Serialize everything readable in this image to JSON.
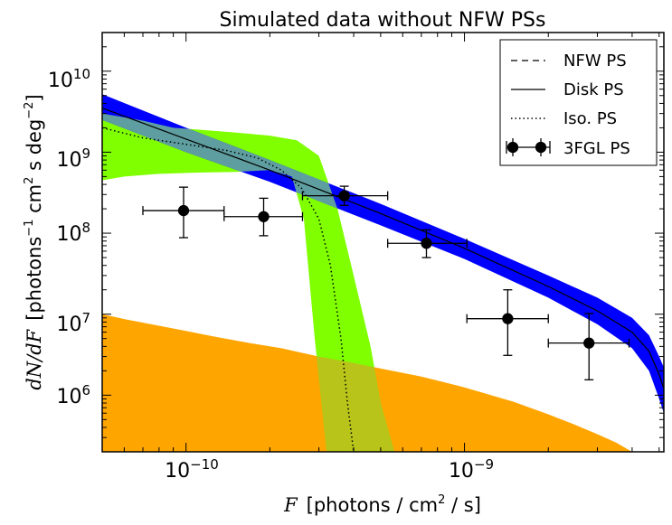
{
  "chart_data": {
    "type": "line",
    "title": "Simulated data without NFW PSs",
    "xlabel": {
      "math": "F",
      "text": "[photons / cm",
      "sup": "2",
      "tail": " / s]"
    },
    "ylabel": {
      "math": "dN/dF",
      "text": "[photons",
      "sup1": "−1",
      "mid": " cm",
      "sup2": "2",
      "mid2": " s deg",
      "sup3": "−2",
      "tail": "]"
    },
    "xscale": "log",
    "yscale": "log",
    "xlim": [
      5e-11,
      5.2e-09
    ],
    "ylim": [
      200000.0,
      30000000000.0
    ],
    "x_ticks": [
      {
        "value": 1e-10,
        "base": "10",
        "exp": "−10"
      },
      {
        "value": 1e-09,
        "base": "10",
        "exp": "−9"
      }
    ],
    "y_ticks": [
      {
        "value": 1000000.0,
        "base": "10",
        "exp": "6"
      },
      {
        "value": 10000000.0,
        "base": "10",
        "exp": "7"
      },
      {
        "value": 100000000.0,
        "base": "10",
        "exp": "8"
      },
      {
        "value": 1000000000.0,
        "base": "10",
        "exp": "9"
      },
      {
        "value": 10000000000.0,
        "base": "10",
        "exp": "10"
      }
    ],
    "legend": {
      "position": "top-right",
      "entries": [
        {
          "label": "NFW PS",
          "style": "dashed"
        },
        {
          "label": "Disk PS",
          "style": "solid"
        },
        {
          "label": "Iso. PS",
          "style": "dotted"
        },
        {
          "label": "3FGL PS",
          "style": "errorbar"
        }
      ]
    },
    "colors": {
      "disk_band": "#0000ff",
      "iso_band": "#7fff00",
      "overlap_band": "#5f9ea0",
      "nfw_fill": "#ffa500",
      "nfw_iso_overlap": "#b8c419",
      "line": "#000000"
    },
    "series": [
      {
        "name": "Disk PS",
        "style": "solid",
        "x": [
          5e-11,
          1e-10,
          2e-10,
          5e-10,
          1e-09,
          2e-09,
          3e-09,
          4e-09,
          4.6e-09,
          5e-09,
          5.2e-09
        ],
        "y": [
          3500000000.0,
          1450000000.0,
          600000000.0,
          175000000.0,
          65000000.0,
          22000000.0,
          11000000.0,
          6000000.0,
          3500000.0,
          1800000.0,
          1200000.0
        ]
      },
      {
        "name": "Disk PS band",
        "style": "band",
        "x": [
          5e-11,
          1e-10,
          2e-10,
          5e-10,
          1e-09,
          2e-09,
          3e-09,
          4e-09,
          4.6e-09,
          5e-09,
          5.2e-09
        ],
        "upper": [
          5200000000.0,
          2000000000.0,
          800000000.0,
          230000000.0,
          85000000.0,
          30000000.0,
          16000000.0,
          9000000.0,
          5500000.0,
          3000000.0,
          2200000.0
        ],
        "lower": [
          2500000000.0,
          1000000000.0,
          430000000.0,
          125000000.0,
          48000000.0,
          16000000.0,
          7500000.0,
          3800000.0,
          2000000.0,
          900000.0,
          600000.0
        ]
      },
      {
        "name": "Iso. PS",
        "style": "dotted",
        "x": [
          5e-11,
          7e-11,
          1e-10,
          1.4e-10,
          1.8e-10,
          2.2e-10,
          2.6e-10,
          3e-10,
          3.3e-10,
          3.6e-10,
          3.8e-10,
          4e-10
        ],
        "y": [
          2000000000.0,
          1500000000.0,
          1250000000.0,
          1050000000.0,
          850000000.0,
          600000000.0,
          360000000.0,
          150000000.0,
          40000000.0,
          5000000.0,
          800000.0,
          200000.0
        ]
      },
      {
        "name": "Iso. PS band",
        "style": "band",
        "x_upper": [
          5e-11,
          7e-11,
          9e-11,
          1.1e-10,
          1.5e-10,
          2e-10,
          2.5e-10,
          3e-10,
          3.5e-10,
          4e-10,
          4.6e-10,
          5e-10,
          5.6e-10
        ],
        "upper": [
          3000000000.0,
          2450000000.0,
          2000000000.0,
          1900000000.0,
          1750000000.0,
          1600000000.0,
          1400000000.0,
          900000000.0,
          200000000.0,
          30000000.0,
          4000000.0,
          800000.0,
          200000.0
        ],
        "x_lower": [
          5e-11,
          6e-11,
          8e-11,
          1.1e-10,
          1.5e-10,
          2e-10,
          2.4e-10,
          2.65e-10,
          2.9e-10,
          3.2e-10
        ],
        "lower": [
          450000000.0,
          500000000.0,
          540000000.0,
          560000000.0,
          570000000.0,
          600000000.0,
          500000000.0,
          150000000.0,
          5000000.0,
          200000.0
        ]
      },
      {
        "name": "NFW PS",
        "style": "filled",
        "x": [
          5e-11,
          6e-11,
          8e-11,
          1e-10,
          1.3e-10,
          1.7e-10,
          2.2e-10,
          3e-10,
          4e-10,
          5.5e-10,
          7e-10,
          1e-09,
          1.5e-09,
          2e-09,
          2.5e-09,
          3e-09,
          3.5e-09,
          4e-09
        ],
        "y": [
          10000000.0,
          8700000.0,
          7200000.0,
          6200000.0,
          5200000.0,
          4400000.0,
          3800000.0,
          3000000.0,
          2500000.0,
          2000000.0,
          1700000.0,
          1250000.0,
          830000.0,
          580000.0,
          430000.0,
          330000.0,
          260000.0,
          200000.0
        ]
      },
      {
        "name": "3FGL PS",
        "style": "errorbar",
        "points": [
          {
            "x": 9.8e-11,
            "y": 190000000.0,
            "xerr": [
              7e-11,
              1.37e-10
            ],
            "yerr": [
              88000000.0,
              370000000.0
            ]
          },
          {
            "x": 1.9e-10,
            "y": 160000000.0,
            "xerr": [
              1.37e-10,
              2.62e-10
            ],
            "yerr": [
              93000000.0,
              270000000.0
            ]
          },
          {
            "x": 3.7e-10,
            "y": 290000000.0,
            "xerr": [
              2.62e-10,
              5.3e-10
            ],
            "yerr": [
              220000000.0,
              380000000.0
            ]
          },
          {
            "x": 7.3e-10,
            "y": 75000000.0,
            "xerr": [
              5.3e-10,
              1.02e-09
            ],
            "yerr": [
              50000000.0,
              110000000.0
            ]
          },
          {
            "x": 1.43e-09,
            "y": 8800000.0,
            "xerr": [
              1.02e-09,
              2e-09
            ],
            "yerr": [
              3100000.0,
              20000000.0
            ]
          },
          {
            "x": 2.8e-09,
            "y": 4400000.0,
            "xerr": [
              2e-09,
              3.9e-09
            ],
            "yerr": [
              1550000.0,
              10200000.0
            ]
          }
        ]
      }
    ]
  }
}
